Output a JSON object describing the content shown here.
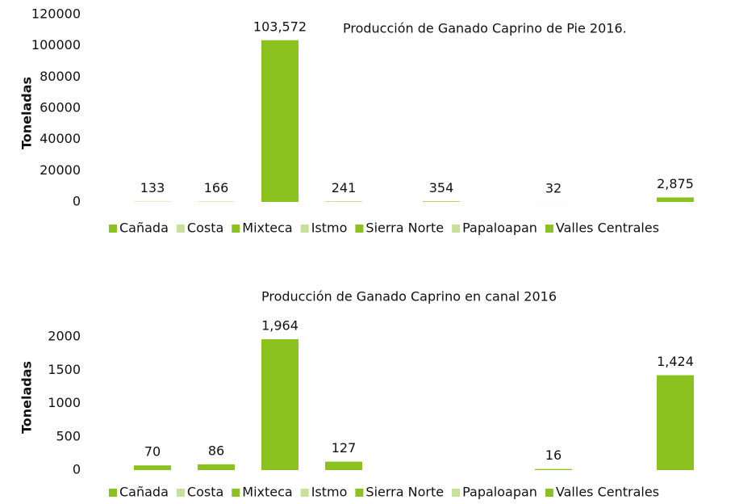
{
  "chart_data": [
    {
      "type": "bar",
      "title": "Producción de Ganado Caprino de Pie 2016.",
      "ylabel": "Toneladas",
      "categories": [
        "Cañada",
        "Costa",
        "Mixteca",
        "Istmo",
        "Sierra Norte",
        "Papaloapan",
        "Valles Centrales"
      ],
      "values": [
        133,
        166,
        103572,
        241,
        354,
        32,
        2875
      ],
      "value_labels": [
        "133",
        "166",
        "103,572",
        "241",
        "354",
        "32",
        "2,875"
      ],
      "color": "#8cc220",
      "legend_colors": [
        "#8cc220",
        "#c7e19b",
        "#8cc220",
        "#c7e19b",
        "#8cc220",
        "#c7e19b",
        "#8cc220"
      ],
      "ylim": [
        0,
        120000
      ],
      "yticks": [
        0,
        20000,
        40000,
        60000,
        80000,
        100000,
        120000
      ],
      "grid": false,
      "legend": "bottom"
    },
    {
      "type": "bar",
      "title": "Producción de Ganado Caprino en canal 2016",
      "ylabel": "Toneladas",
      "categories": [
        "Cañada",
        "Costa",
        "Mixteca",
        "Istmo",
        "Sierra Norte",
        "Papaloapan",
        "Valles Centrales"
      ],
      "values": [
        70,
        86,
        1964,
        127,
        null,
        16,
        1424
      ],
      "value_labels": [
        "70",
        "86",
        "1,964",
        "127",
        null,
        "16",
        "1,424"
      ],
      "color": "#8cc220",
      "legend_colors": [
        "#8cc220",
        "#c7e19b",
        "#8cc220",
        "#c7e19b",
        "#8cc220",
        "#c7e19b",
        "#8cc220"
      ],
      "ylim": [
        0,
        2000
      ],
      "yticks": [
        0,
        500,
        1000,
        1500,
        2000
      ],
      "grid": false,
      "legend": "bottom"
    }
  ]
}
